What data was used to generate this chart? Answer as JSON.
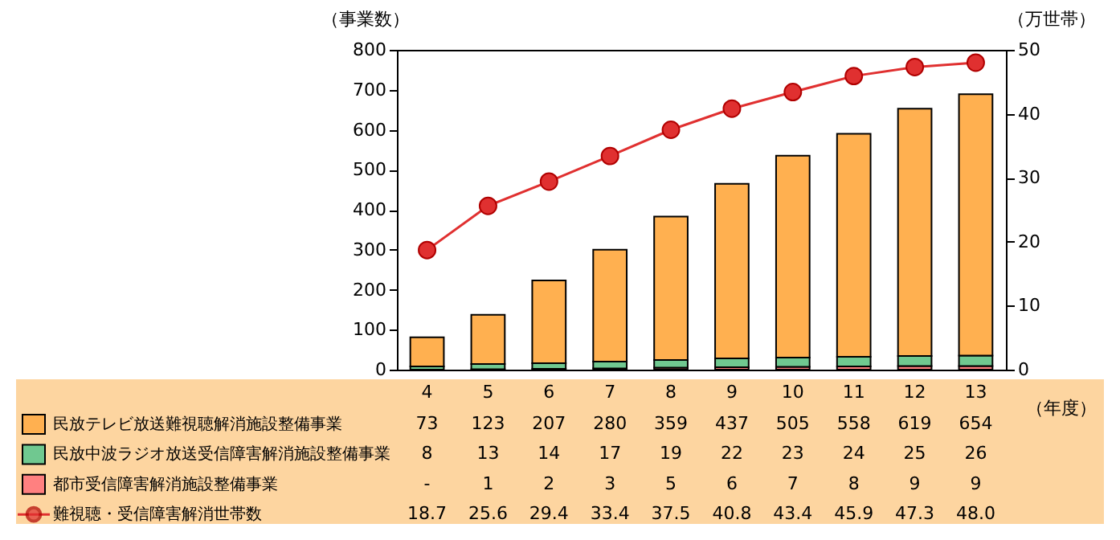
{
  "chart_data": {
    "type": "bar",
    "stacked": true,
    "xlabel": "（年度）",
    "ylabel": "（事業数）",
    "y2label": "（万世帯）",
    "categories": [
      "4",
      "5",
      "6",
      "7",
      "8",
      "9",
      "10",
      "11",
      "12",
      "13"
    ],
    "ylim": [
      0,
      800
    ],
    "yticks": [
      0,
      100,
      200,
      300,
      400,
      500,
      600,
      700,
      800
    ],
    "y2lim": [
      0,
      50
    ],
    "y2ticks": [
      0,
      10,
      20,
      30,
      40,
      50
    ],
    "legend": "bottom",
    "marker": "circle",
    "grid": false,
    "series": [
      {
        "name": "都市受信障害解消施設整備事業",
        "color": "#ff8080",
        "values": [
          null,
          1,
          2,
          3,
          5,
          6,
          7,
          8,
          9,
          9
        ],
        "value_labels": [
          "-",
          "1",
          "2",
          "3",
          "5",
          "6",
          "7",
          "8",
          "9",
          "9"
        ]
      },
      {
        "name": "民放中波ラジオ放送受信障害解消施設整備事業",
        "color": "#70c890",
        "values": [
          8,
          13,
          14,
          17,
          19,
          22,
          23,
          24,
          25,
          26
        ],
        "value_labels": [
          "8",
          "13",
          "14",
          "17",
          "19",
          "22",
          "23",
          "24",
          "25",
          "26"
        ]
      },
      {
        "name": "民放テレビ放送難視聴解消施設整備事業",
        "color": "#ffb050",
        "values": [
          73,
          123,
          207,
          280,
          359,
          437,
          505,
          558,
          619,
          654
        ],
        "value_labels": [
          "73",
          "123",
          "207",
          "280",
          "359",
          "437",
          "505",
          "558",
          "619",
          "654"
        ]
      },
      {
        "name": "難視聴・受信障害解消世帯数",
        "type": "line",
        "axis": "y2",
        "color": "#e03030",
        "values": [
          18.7,
          25.6,
          29.4,
          33.4,
          37.5,
          40.8,
          43.4,
          45.9,
          47.3,
          48.0
        ],
        "value_labels": [
          "18.7",
          "25.6",
          "29.4",
          "33.4",
          "37.5",
          "40.8",
          "43.4",
          "45.9",
          "47.3",
          "48.0"
        ]
      }
    ]
  }
}
